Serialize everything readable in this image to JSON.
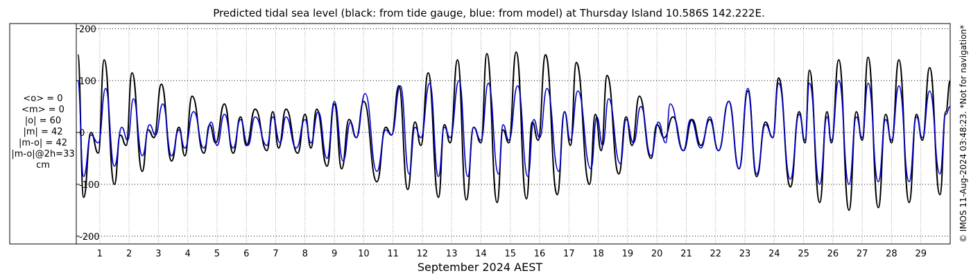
{
  "chart_data": {
    "type": "line",
    "title": "Predicted tidal sea level (black: from tide gauge, blue: from model) at Thursday Island 10.586S 142.222E.",
    "xlabel": "September 2024 AEST",
    "ylabel": "",
    "xlim": [
      0.2,
      30.0
    ],
    "ylim": [
      -215,
      210
    ],
    "x_ticks": [
      1,
      2,
      3,
      4,
      5,
      6,
      7,
      8,
      9,
      10,
      11,
      12,
      13,
      14,
      15,
      16,
      17,
      18,
      19,
      20,
      21,
      22,
      23,
      24,
      25,
      26,
      27,
      28,
      29
    ],
    "y_ticks": [
      200,
      100,
      0,
      -100,
      -200
    ],
    "grid": true,
    "stats": [
      "<o> = 0",
      "<m> = 0",
      "|o| = 60",
      "|m| = 42",
      "|m-o| = 42",
      "|m-o|@2h=33",
      "cm"
    ],
    "side_note": "© IMOS 11-Aug-2024 03:48:23. *Not for navigation*",
    "series": [
      {
        "color": "#000000",
        "values": [
          [
            0.25,
            150
          ],
          [
            0.45,
            -125
          ],
          [
            0.7,
            0
          ],
          [
            0.95,
            -40
          ],
          [
            1.15,
            140
          ],
          [
            1.5,
            -100
          ],
          [
            1.7,
            -5
          ],
          [
            1.9,
            -25
          ],
          [
            2.1,
            115
          ],
          [
            2.45,
            -75
          ],
          [
            2.65,
            5
          ],
          [
            2.85,
            -10
          ],
          [
            3.1,
            93
          ],
          [
            3.45,
            -55
          ],
          [
            3.7,
            10
          ],
          [
            3.9,
            -45
          ],
          [
            4.15,
            70
          ],
          [
            4.55,
            -40
          ],
          [
            4.75,
            15
          ],
          [
            4.95,
            -20
          ],
          [
            5.25,
            55
          ],
          [
            5.55,
            -40
          ],
          [
            5.8,
            30
          ],
          [
            6.0,
            -25
          ],
          [
            6.3,
            45
          ],
          [
            6.7,
            -35
          ],
          [
            6.9,
            40
          ],
          [
            7.1,
            -30
          ],
          [
            7.35,
            45
          ],
          [
            7.75,
            -40
          ],
          [
            8.0,
            35
          ],
          [
            8.2,
            -30
          ],
          [
            8.4,
            45
          ],
          [
            8.75,
            -65
          ],
          [
            9.0,
            55
          ],
          [
            9.25,
            -70
          ],
          [
            9.5,
            25
          ],
          [
            9.75,
            -10
          ],
          [
            10.0,
            60
          ],
          [
            10.45,
            -95
          ],
          [
            10.75,
            10
          ],
          [
            10.95,
            -5
          ],
          [
            11.2,
            90
          ],
          [
            11.5,
            -110
          ],
          [
            11.75,
            20
          ],
          [
            11.95,
            -25
          ],
          [
            12.2,
            115
          ],
          [
            12.55,
            -125
          ],
          [
            12.75,
            15
          ],
          [
            12.95,
            -20
          ],
          [
            13.2,
            140
          ],
          [
            13.5,
            -130
          ],
          [
            13.75,
            10
          ],
          [
            14.0,
            -20
          ],
          [
            14.2,
            152
          ],
          [
            14.55,
            -135
          ],
          [
            14.75,
            5
          ],
          [
            14.95,
            -20
          ],
          [
            15.2,
            155
          ],
          [
            15.55,
            -128
          ],
          [
            15.75,
            20
          ],
          [
            15.95,
            -15
          ],
          [
            16.2,
            150
          ],
          [
            16.6,
            -120
          ],
          [
            16.85,
            40
          ],
          [
            17.05,
            -25
          ],
          [
            17.25,
            135
          ],
          [
            17.7,
            -100
          ],
          [
            17.9,
            35
          ],
          [
            18.1,
            -35
          ],
          [
            18.3,
            110
          ],
          [
            18.7,
            -80
          ],
          [
            18.95,
            30
          ],
          [
            19.15,
            -25
          ],
          [
            19.4,
            70
          ],
          [
            19.8,
            -50
          ],
          [
            20.0,
            15
          ],
          [
            20.25,
            -10
          ],
          [
            20.55,
            30
          ],
          [
            20.9,
            -35
          ],
          [
            21.2,
            25
          ],
          [
            21.5,
            -25
          ],
          [
            21.8,
            25
          ],
          [
            22.1,
            -35
          ],
          [
            22.45,
            60
          ],
          [
            22.8,
            -70
          ],
          [
            23.1,
            80
          ],
          [
            23.4,
            -85
          ],
          [
            23.7,
            20
          ],
          [
            23.95,
            -10
          ],
          [
            24.15,
            105
          ],
          [
            24.55,
            -105
          ],
          [
            24.85,
            40
          ],
          [
            25.05,
            -20
          ],
          [
            25.2,
            120
          ],
          [
            25.55,
            -135
          ],
          [
            25.8,
            40
          ],
          [
            25.95,
            -20
          ],
          [
            26.2,
            140
          ],
          [
            26.55,
            -150
          ],
          [
            26.8,
            40
          ],
          [
            27.0,
            -15
          ],
          [
            27.2,
            145
          ],
          [
            27.55,
            -145
          ],
          [
            27.8,
            35
          ],
          [
            28.0,
            -20
          ],
          [
            28.25,
            140
          ],
          [
            28.6,
            -135
          ],
          [
            28.85,
            35
          ],
          [
            29.05,
            -15
          ],
          [
            29.3,
            125
          ],
          [
            29.65,
            -120
          ],
          [
            29.85,
            40
          ],
          [
            30.0,
            100
          ]
        ]
      },
      {
        "color": "#0000cc",
        "values": [
          [
            0.25,
            100
          ],
          [
            0.45,
            -85
          ],
          [
            0.7,
            -5
          ],
          [
            0.95,
            -20
          ],
          [
            1.2,
            85
          ],
          [
            1.5,
            -65
          ],
          [
            1.75,
            10
          ],
          [
            1.95,
            -15
          ],
          [
            2.15,
            65
          ],
          [
            2.45,
            -45
          ],
          [
            2.7,
            15
          ],
          [
            2.9,
            -5
          ],
          [
            3.15,
            55
          ],
          [
            3.45,
            -45
          ],
          [
            3.7,
            5
          ],
          [
            3.9,
            -30
          ],
          [
            4.2,
            40
          ],
          [
            4.55,
            -30
          ],
          [
            4.8,
            20
          ],
          [
            5.0,
            -25
          ],
          [
            5.25,
            35
          ],
          [
            5.55,
            -30
          ],
          [
            5.8,
            25
          ],
          [
            6.05,
            -25
          ],
          [
            6.3,
            30
          ],
          [
            6.7,
            -25
          ],
          [
            6.9,
            30
          ],
          [
            7.15,
            -20
          ],
          [
            7.35,
            30
          ],
          [
            7.7,
            -30
          ],
          [
            8.0,
            25
          ],
          [
            8.2,
            -20
          ],
          [
            8.45,
            40
          ],
          [
            8.75,
            -50
          ],
          [
            9.0,
            60
          ],
          [
            9.3,
            -55
          ],
          [
            9.55,
            20
          ],
          [
            9.75,
            -10
          ],
          [
            10.05,
            75
          ],
          [
            10.45,
            -75
          ],
          [
            10.75,
            5
          ],
          [
            10.95,
            -5
          ],
          [
            11.25,
            90
          ],
          [
            11.55,
            -80
          ],
          [
            11.75,
            10
          ],
          [
            11.95,
            -10
          ],
          [
            12.25,
            95
          ],
          [
            12.55,
            -85
          ],
          [
            12.75,
            10
          ],
          [
            12.95,
            -10
          ],
          [
            13.25,
            100
          ],
          [
            13.55,
            -85
          ],
          [
            13.75,
            10
          ],
          [
            14.0,
            -15
          ],
          [
            14.25,
            95
          ],
          [
            14.6,
            -80
          ],
          [
            14.75,
            15
          ],
          [
            14.95,
            -15
          ],
          [
            15.25,
            90
          ],
          [
            15.6,
            -85
          ],
          [
            15.8,
            25
          ],
          [
            16.0,
            -10
          ],
          [
            16.25,
            85
          ],
          [
            16.65,
            -75
          ],
          [
            16.85,
            40
          ],
          [
            17.05,
            -15
          ],
          [
            17.3,
            80
          ],
          [
            17.75,
            -70
          ],
          [
            17.95,
            30
          ],
          [
            18.15,
            -25
          ],
          [
            18.35,
            65
          ],
          [
            18.75,
            -60
          ],
          [
            18.95,
            25
          ],
          [
            19.2,
            -20
          ],
          [
            19.45,
            50
          ],
          [
            19.8,
            -45
          ],
          [
            20.05,
            20
          ],
          [
            20.3,
            -20
          ],
          [
            20.45,
            55
          ],
          [
            20.9,
            -35
          ],
          [
            21.15,
            25
          ],
          [
            21.5,
            -30
          ],
          [
            21.8,
            30
          ],
          [
            22.1,
            -35
          ],
          [
            22.45,
            60
          ],
          [
            22.8,
            -70
          ],
          [
            23.1,
            85
          ],
          [
            23.4,
            -80
          ],
          [
            23.7,
            15
          ],
          [
            23.95,
            -10
          ],
          [
            24.15,
            95
          ],
          [
            24.55,
            -90
          ],
          [
            24.85,
            35
          ],
          [
            25.05,
            -15
          ],
          [
            25.2,
            95
          ],
          [
            25.55,
            -100
          ],
          [
            25.8,
            30
          ],
          [
            25.95,
            -15
          ],
          [
            26.2,
            100
          ],
          [
            26.55,
            -100
          ],
          [
            26.8,
            30
          ],
          [
            27.0,
            -10
          ],
          [
            27.2,
            95
          ],
          [
            27.55,
            -95
          ],
          [
            27.8,
            25
          ],
          [
            28.0,
            -15
          ],
          [
            28.25,
            90
          ],
          [
            28.6,
            -95
          ],
          [
            28.85,
            30
          ],
          [
            29.05,
            -10
          ],
          [
            29.3,
            80
          ],
          [
            29.65,
            -80
          ],
          [
            29.85,
            35
          ],
          [
            30.0,
            50
          ]
        ]
      }
    ]
  }
}
